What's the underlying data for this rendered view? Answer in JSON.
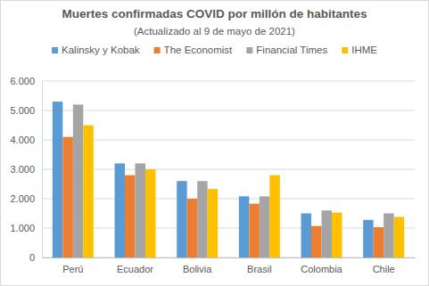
{
  "chart_data": {
    "type": "bar",
    "title": "Muertes confirmadas COVID por millón de habitantes",
    "subtitle": "(Actualizado al 9 de mayo de 2021)",
    "categories": [
      "Perú",
      "Ecuador",
      "Bolivia",
      "Brasil",
      "Colombia",
      "Chile"
    ],
    "series": [
      {
        "name": "Kalinsky y Kobak",
        "color": "#5b9bd5",
        "values": [
          5300,
          3200,
          2600,
          2080,
          1500,
          1280
        ]
      },
      {
        "name": "The Economist",
        "color": "#ed7d31",
        "values": [
          4100,
          2800,
          2000,
          1830,
          1070,
          1030
        ]
      },
      {
        "name": "Financial Times",
        "color": "#a5a5a5",
        "values": [
          5200,
          3200,
          2600,
          2080,
          1600,
          1500
        ]
      },
      {
        "name": "IHME",
        "color": "#ffc000",
        "values": [
          4500,
          3000,
          2330,
          2800,
          1530,
          1380
        ]
      }
    ],
    "ylim": [
      0,
      6000
    ],
    "yticks": [
      0,
      {
        "value": 1000,
        "label": "1.000"
      },
      {
        "value": 2000,
        "label": "2.000"
      },
      {
        "value": 3000,
        "label": "3.000"
      },
      {
        "value": 4000,
        "label": "4.000"
      },
      {
        "value": 5000,
        "label": "5.000"
      },
      {
        "value": 6000,
        "label": "6.000"
      }
    ],
    "grid": true,
    "legend": "top"
  }
}
